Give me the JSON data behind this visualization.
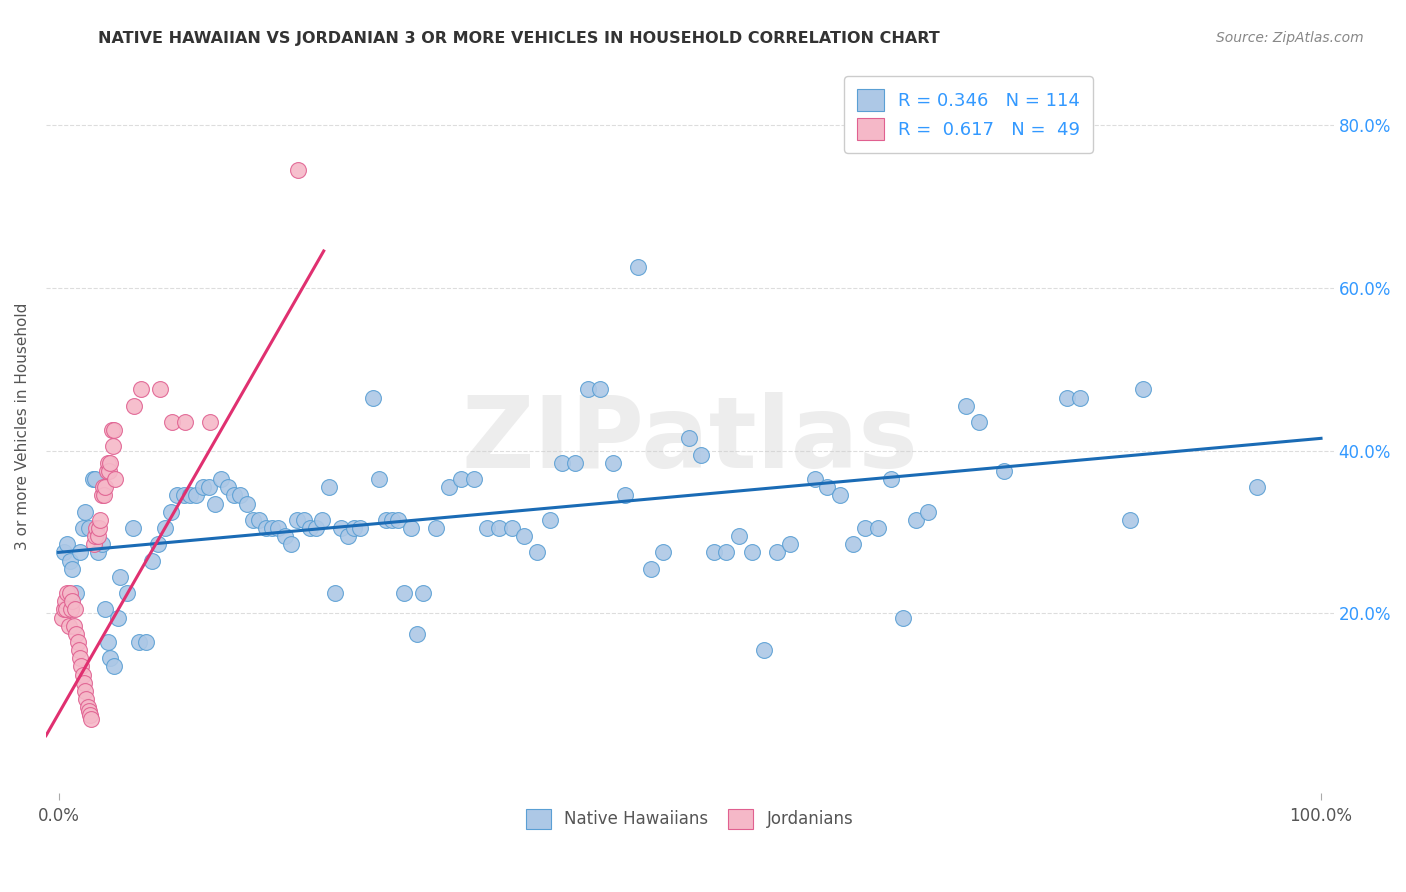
{
  "title": "NATIVE HAWAIIAN VS JORDANIAN 3 OR MORE VEHICLES IN HOUSEHOLD CORRELATION CHART",
  "source": "Source: ZipAtlas.com",
  "ylabel": "3 or more Vehicles in Household",
  "xlim": [
    -0.01,
    1.01
  ],
  "ylim": [
    -0.02,
    0.88
  ],
  "x_tick_pos": [
    0.0,
    1.0
  ],
  "x_tick_labels": [
    "0.0%",
    "100.0%"
  ],
  "y_tick_pos": [
    0.2,
    0.4,
    0.6,
    0.8
  ],
  "y_tick_labels": [
    "20.0%",
    "40.0%",
    "60.0%",
    "80.0%"
  ],
  "watermark": "ZIPatlas",
  "legend_blue_label": "Native Hawaiians",
  "legend_pink_label": "Jordanians",
  "blue_R": "0.346",
  "blue_N": "114",
  "pink_R": "0.617",
  "pink_N": "49",
  "blue_color": "#adc8e6",
  "pink_color": "#f5b8c8",
  "blue_edge_color": "#5a9fd4",
  "pink_edge_color": "#e06090",
  "blue_line_color": "#1a6bb5",
  "pink_line_color": "#e03070",
  "legend_text_color": "#3399ff",
  "title_color": "#333333",
  "source_color": "#888888",
  "ylabel_color": "#555555",
  "xtick_color": "#555555",
  "ytick_color": "#3399ff",
  "grid_color": "#dddddd",
  "blue_scatter": [
    [
      0.004,
      0.275
    ],
    [
      0.007,
      0.285
    ],
    [
      0.009,
      0.265
    ],
    [
      0.011,
      0.255
    ],
    [
      0.014,
      0.225
    ],
    [
      0.017,
      0.275
    ],
    [
      0.019,
      0.305
    ],
    [
      0.021,
      0.325
    ],
    [
      0.024,
      0.305
    ],
    [
      0.027,
      0.365
    ],
    [
      0.029,
      0.365
    ],
    [
      0.031,
      0.275
    ],
    [
      0.034,
      0.285
    ],
    [
      0.037,
      0.205
    ],
    [
      0.039,
      0.165
    ],
    [
      0.041,
      0.145
    ],
    [
      0.044,
      0.135
    ],
    [
      0.047,
      0.195
    ],
    [
      0.049,
      0.245
    ],
    [
      0.054,
      0.225
    ],
    [
      0.059,
      0.305
    ],
    [
      0.064,
      0.165
    ],
    [
      0.069,
      0.165
    ],
    [
      0.074,
      0.265
    ],
    [
      0.079,
      0.285
    ],
    [
      0.084,
      0.305
    ],
    [
      0.089,
      0.325
    ],
    [
      0.094,
      0.345
    ],
    [
      0.099,
      0.345
    ],
    [
      0.104,
      0.345
    ],
    [
      0.109,
      0.345
    ],
    [
      0.114,
      0.355
    ],
    [
      0.119,
      0.355
    ],
    [
      0.124,
      0.335
    ],
    [
      0.129,
      0.365
    ],
    [
      0.134,
      0.355
    ],
    [
      0.139,
      0.345
    ],
    [
      0.144,
      0.345
    ],
    [
      0.149,
      0.335
    ],
    [
      0.154,
      0.315
    ],
    [
      0.159,
      0.315
    ],
    [
      0.164,
      0.305
    ],
    [
      0.169,
      0.305
    ],
    [
      0.174,
      0.305
    ],
    [
      0.179,
      0.295
    ],
    [
      0.184,
      0.285
    ],
    [
      0.189,
      0.315
    ],
    [
      0.194,
      0.315
    ],
    [
      0.199,
      0.305
    ],
    [
      0.204,
      0.305
    ],
    [
      0.209,
      0.315
    ],
    [
      0.214,
      0.355
    ],
    [
      0.219,
      0.225
    ],
    [
      0.224,
      0.305
    ],
    [
      0.229,
      0.295
    ],
    [
      0.234,
      0.305
    ],
    [
      0.239,
      0.305
    ],
    [
      0.249,
      0.465
    ],
    [
      0.254,
      0.365
    ],
    [
      0.259,
      0.315
    ],
    [
      0.264,
      0.315
    ],
    [
      0.269,
      0.315
    ],
    [
      0.274,
      0.225
    ],
    [
      0.279,
      0.305
    ],
    [
      0.284,
      0.175
    ],
    [
      0.289,
      0.225
    ],
    [
      0.299,
      0.305
    ],
    [
      0.309,
      0.355
    ],
    [
      0.319,
      0.365
    ],
    [
      0.329,
      0.365
    ],
    [
      0.339,
      0.305
    ],
    [
      0.349,
      0.305
    ],
    [
      0.359,
      0.305
    ],
    [
      0.369,
      0.295
    ],
    [
      0.379,
      0.275
    ],
    [
      0.389,
      0.315
    ],
    [
      0.399,
      0.385
    ],
    [
      0.409,
      0.385
    ],
    [
      0.419,
      0.475
    ],
    [
      0.429,
      0.475
    ],
    [
      0.439,
      0.385
    ],
    [
      0.449,
      0.345
    ],
    [
      0.459,
      0.625
    ],
    [
      0.469,
      0.255
    ],
    [
      0.479,
      0.275
    ],
    [
      0.499,
      0.415
    ],
    [
      0.509,
      0.395
    ],
    [
      0.519,
      0.275
    ],
    [
      0.529,
      0.275
    ],
    [
      0.539,
      0.295
    ],
    [
      0.549,
      0.275
    ],
    [
      0.559,
      0.155
    ],
    [
      0.569,
      0.275
    ],
    [
      0.579,
      0.285
    ],
    [
      0.599,
      0.365
    ],
    [
      0.609,
      0.355
    ],
    [
      0.619,
      0.345
    ],
    [
      0.629,
      0.285
    ],
    [
      0.639,
      0.305
    ],
    [
      0.649,
      0.305
    ],
    [
      0.659,
      0.365
    ],
    [
      0.669,
      0.195
    ],
    [
      0.679,
      0.315
    ],
    [
      0.689,
      0.325
    ],
    [
      0.719,
      0.455
    ],
    [
      0.729,
      0.435
    ],
    [
      0.749,
      0.375
    ],
    [
      0.799,
      0.465
    ],
    [
      0.809,
      0.465
    ],
    [
      0.849,
      0.315
    ],
    [
      0.859,
      0.475
    ],
    [
      0.949,
      0.355
    ]
  ],
  "pink_scatter": [
    [
      0.003,
      0.195
    ],
    [
      0.004,
      0.205
    ],
    [
      0.005,
      0.215
    ],
    [
      0.006,
      0.205
    ],
    [
      0.007,
      0.225
    ],
    [
      0.008,
      0.185
    ],
    [
      0.009,
      0.225
    ],
    [
      0.01,
      0.205
    ],
    [
      0.011,
      0.215
    ],
    [
      0.012,
      0.185
    ],
    [
      0.013,
      0.205
    ],
    [
      0.014,
      0.175
    ],
    [
      0.015,
      0.165
    ],
    [
      0.016,
      0.155
    ],
    [
      0.017,
      0.145
    ],
    [
      0.018,
      0.135
    ],
    [
      0.019,
      0.125
    ],
    [
      0.02,
      0.115
    ],
    [
      0.021,
      0.105
    ],
    [
      0.022,
      0.095
    ],
    [
      0.023,
      0.085
    ],
    [
      0.024,
      0.08
    ],
    [
      0.025,
      0.075
    ],
    [
      0.026,
      0.07
    ],
    [
      0.028,
      0.285
    ],
    [
      0.029,
      0.295
    ],
    [
      0.03,
      0.305
    ],
    [
      0.031,
      0.295
    ],
    [
      0.032,
      0.305
    ],
    [
      0.033,
      0.315
    ],
    [
      0.034,
      0.345
    ],
    [
      0.035,
      0.355
    ],
    [
      0.036,
      0.345
    ],
    [
      0.037,
      0.355
    ],
    [
      0.038,
      0.375
    ],
    [
      0.039,
      0.385
    ],
    [
      0.04,
      0.375
    ],
    [
      0.041,
      0.385
    ],
    [
      0.042,
      0.425
    ],
    [
      0.043,
      0.405
    ],
    [
      0.044,
      0.425
    ],
    [
      0.045,
      0.365
    ],
    [
      0.06,
      0.455
    ],
    [
      0.065,
      0.475
    ],
    [
      0.08,
      0.475
    ],
    [
      0.09,
      0.435
    ],
    [
      0.1,
      0.435
    ],
    [
      0.12,
      0.435
    ],
    [
      0.19,
      0.745
    ]
  ],
  "blue_trendline": [
    [
      0.0,
      0.275
    ],
    [
      1.0,
      0.415
    ]
  ],
  "pink_trendline": [
    [
      -0.01,
      0.05
    ],
    [
      0.21,
      0.645
    ]
  ]
}
